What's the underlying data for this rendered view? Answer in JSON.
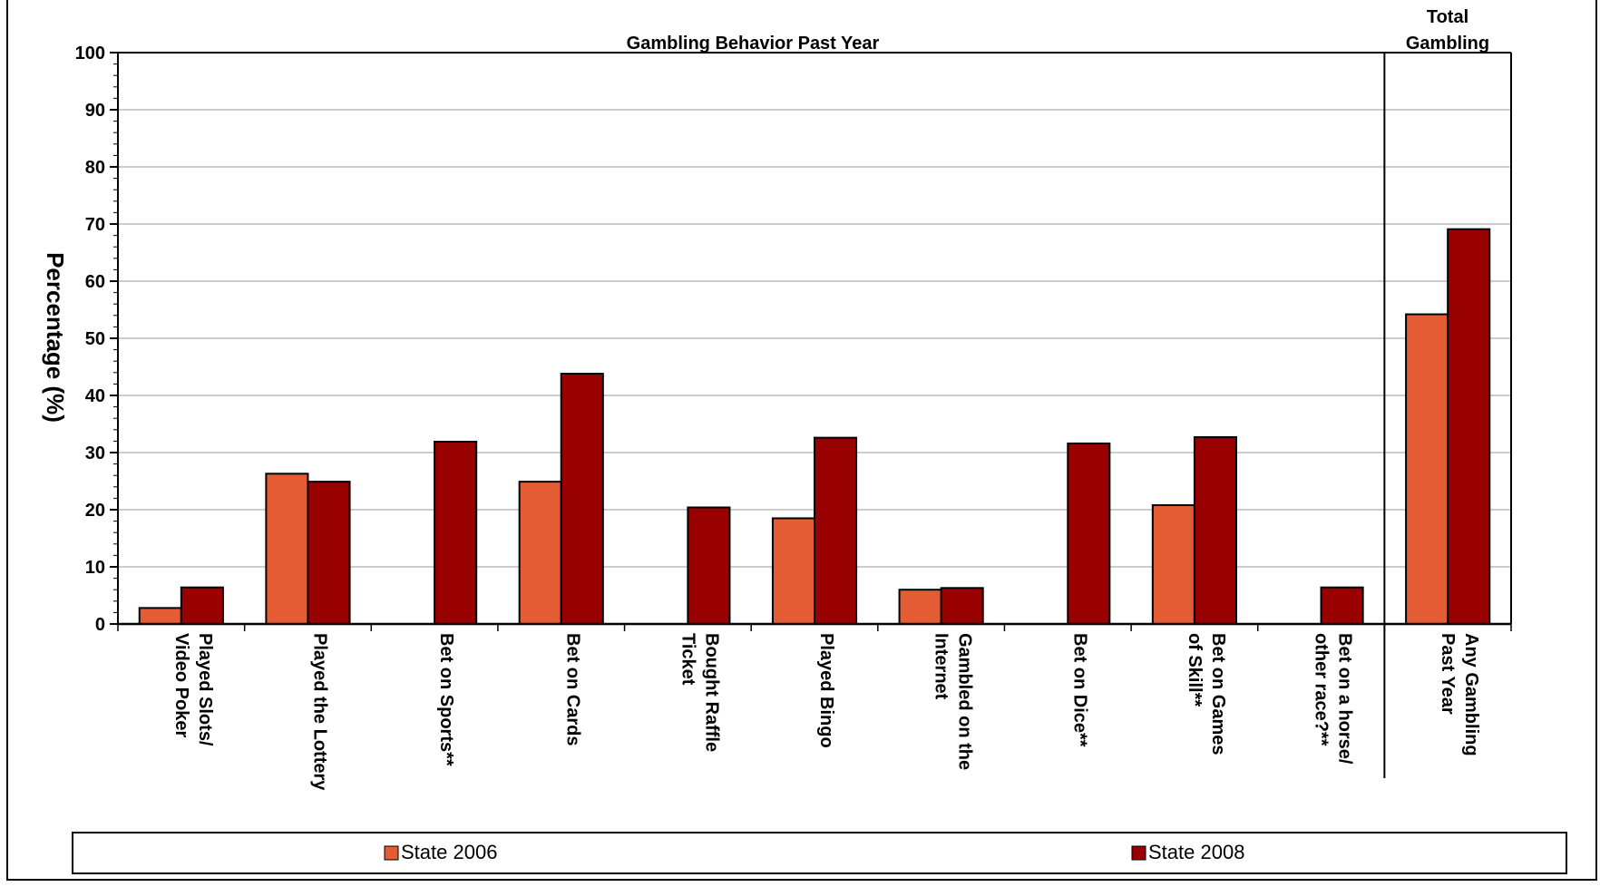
{
  "chart_data": {
    "type": "bar",
    "ylabel": "Percentage (%)",
    "ylim": [
      0,
      100
    ],
    "yticks": [
      "0",
      "10",
      "20",
      "30",
      "40",
      "50",
      "60",
      "70",
      "80",
      "90",
      "100"
    ],
    "grid": true,
    "section_headers": {
      "behavior": "Gambling Behavior Past Year",
      "total_line1": "Total",
      "total_line2": "Gambling"
    },
    "categories": [
      [
        "Played Slots/",
        "Video Poker"
      ],
      [
        "Played the Lottery"
      ],
      [
        "Bet on Sports**"
      ],
      [
        "Bet on Cards"
      ],
      [
        "Bought Raffle",
        "Ticket"
      ],
      [
        "Played Bingo"
      ],
      [
        "Gambled on the",
        "Internet"
      ],
      [
        "Bet on Dice**"
      ],
      [
        "Bet on Games",
        "of Skill**"
      ],
      [
        "Bet on a horse/",
        "other race?**"
      ],
      [
        "Any Gambling",
        "Past Year"
      ]
    ],
    "series": [
      {
        "name": "State 2006",
        "color": "#e45c34",
        "values": [
          2.8,
          26.3,
          0,
          24.9,
          0,
          18.5,
          6.0,
          0,
          20.8,
          0,
          54.2
        ]
      },
      {
        "name": "State 2008",
        "color": "#990000",
        "values": [
          6.4,
          24.9,
          31.9,
          43.8,
          20.4,
          32.6,
          6.3,
          31.6,
          32.7,
          6.4,
          69.1
        ]
      }
    ],
    "legend": {
      "position": "bottom",
      "items": [
        {
          "label": "State 2006",
          "color": "#e45c34"
        },
        {
          "label": "State 2008",
          "color": "#990000"
        }
      ]
    }
  }
}
